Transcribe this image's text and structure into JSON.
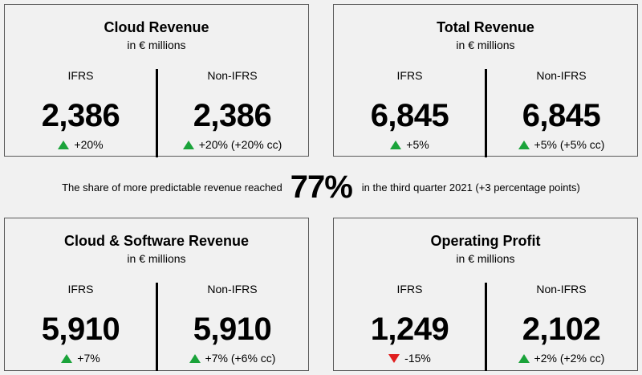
{
  "cards": [
    {
      "title": "Cloud Revenue",
      "subtitle": "in € millions",
      "left": {
        "label": "IFRS",
        "value": "2,386",
        "change": "+20%",
        "direction": "up"
      },
      "right": {
        "label": "Non-IFRS",
        "value": "2,386",
        "change": "+20% (+20% cc)",
        "direction": "up"
      }
    },
    {
      "title": "Total Revenue",
      "subtitle": "in € millions",
      "left": {
        "label": "IFRS",
        "value": "6,845",
        "change": "+5%",
        "direction": "up"
      },
      "right": {
        "label": "Non-IFRS",
        "value": "6,845",
        "change": "+5% (+5% cc)",
        "direction": "up"
      }
    },
    {
      "title": "Cloud & Software Revenue",
      "subtitle": "in € millions",
      "left": {
        "label": "IFRS",
        "value": "5,910",
        "change": "+7%",
        "direction": "up"
      },
      "right": {
        "label": "Non-IFRS",
        "value": "5,910",
        "change": "+7% (+6% cc)",
        "direction": "up"
      }
    },
    {
      "title": "Operating Profit",
      "subtitle": "in € millions",
      "left": {
        "label": "IFRS",
        "value": "1,249",
        "change": "-15%",
        "direction": "down"
      },
      "right": {
        "label": "Non-IFRS",
        "value": "2,102",
        "change": "+2% (+2% cc)",
        "direction": "up"
      }
    }
  ],
  "middle": {
    "before": "The share of more predictable revenue reached",
    "highlight": "77%",
    "after": "in the third quarter 2021 (+3 percentage points)"
  },
  "colors": {
    "up": "#1aa33a",
    "down": "#e01e1e",
    "border": "#5a5a5a",
    "background": "#f1f1f1"
  },
  "icons": {
    "up": "triangle-up-icon",
    "down": "triangle-down-icon"
  }
}
